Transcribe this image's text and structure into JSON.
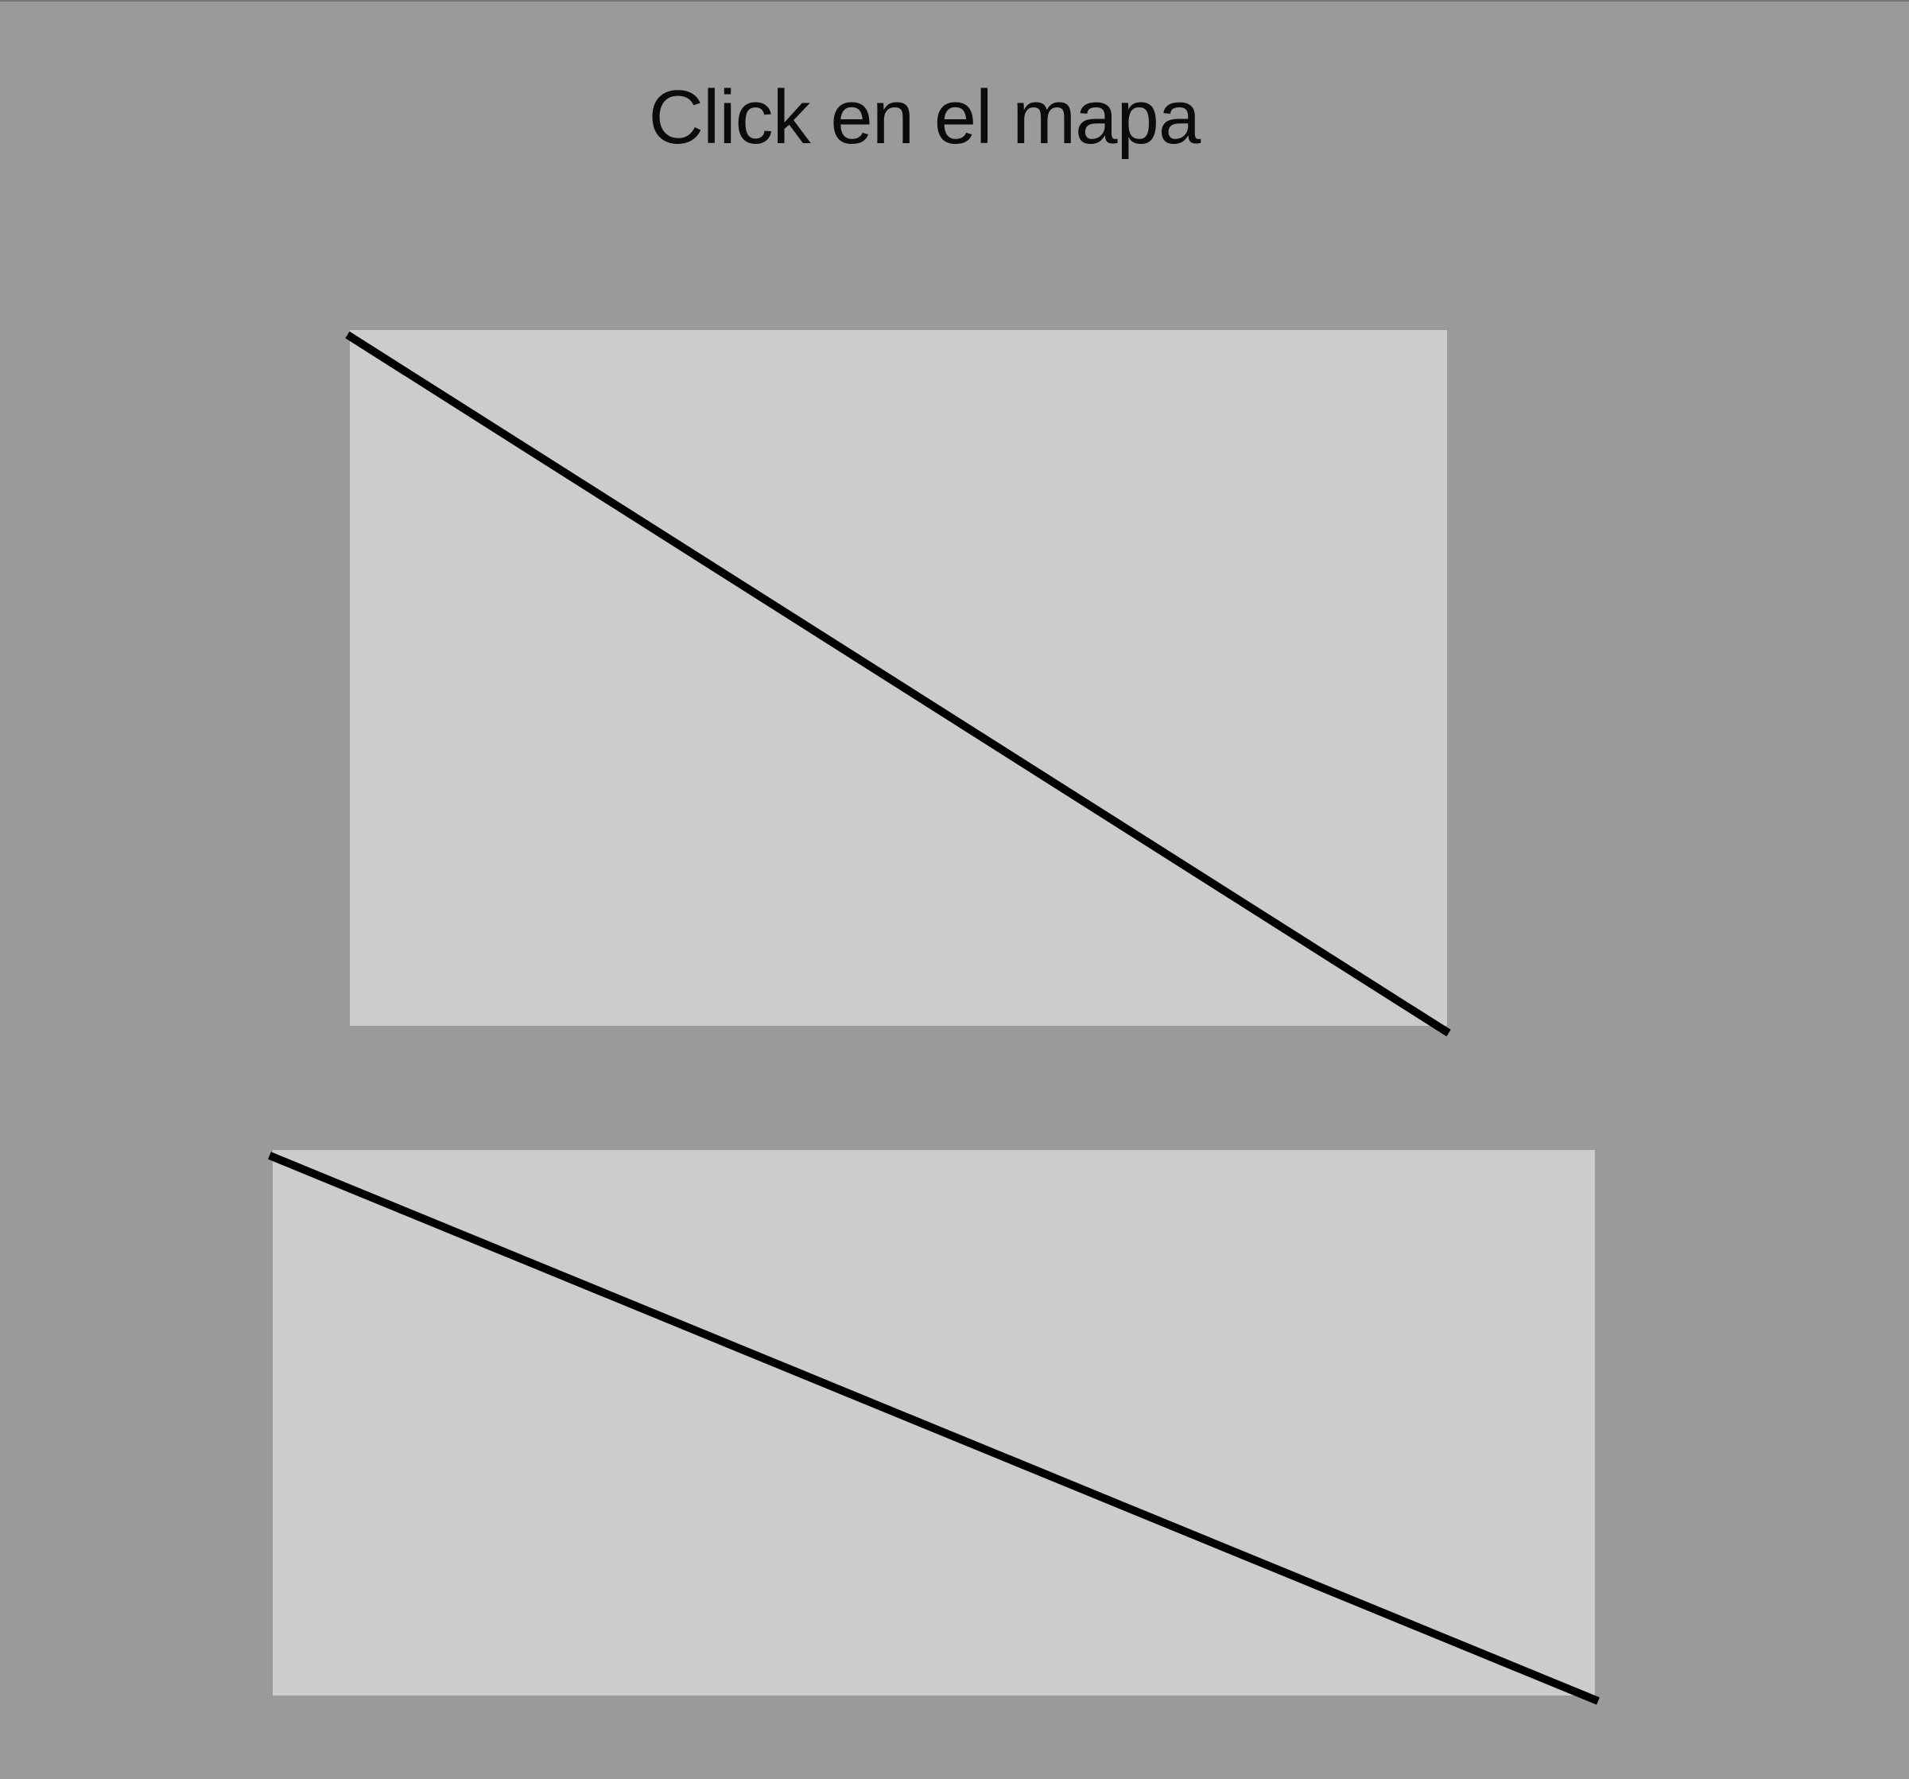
{
  "header": {
    "title": "Click en el mapa"
  },
  "maps": [
    {
      "role": "top-map"
    },
    {
      "role": "bottom-map"
    }
  ],
  "colors": {
    "background": "#9a9a9a",
    "map_fill": "#cccccc",
    "line": "#000000",
    "title_text": "#0b0b0b"
  }
}
